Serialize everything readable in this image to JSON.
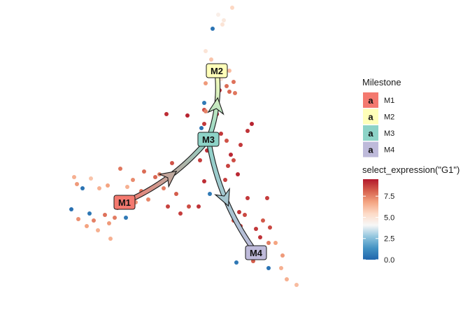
{
  "chart_data": {
    "type": "scatter",
    "title": "",
    "xlabel": "",
    "ylabel": "",
    "grid": false,
    "axes_visible": false,
    "milestones": [
      {
        "id": "M1",
        "color": "#F4796F",
        "x": -6.0,
        "y": -2.4
      },
      {
        "id": "M2",
        "color": "#FFFFB9",
        "x": 0.6,
        "y": 7.0
      },
      {
        "id": "M3",
        "color": "#8DD3C7",
        "x": 0.0,
        "y": 2.1
      },
      {
        "id": "M4",
        "color": "#BEBADA",
        "x": 3.4,
        "y": -6.0
      }
    ],
    "edges": [
      {
        "from": "M1",
        "to": "M3"
      },
      {
        "from": "M3",
        "to": "M2"
      },
      {
        "from": "M3",
        "to": "M4"
      }
    ],
    "cells": [
      {
        "x": -9.6,
        "y": -0.6,
        "expr": 6.5
      },
      {
        "x": -9.4,
        "y": -1.1,
        "expr": 7.0
      },
      {
        "x": -9.0,
        "y": -1.4,
        "expr": 0.4
      },
      {
        "x": -8.4,
        "y": -0.7,
        "expr": 6.0
      },
      {
        "x": -7.8,
        "y": -1.4,
        "expr": 6.5
      },
      {
        "x": -7.2,
        "y": -1.2,
        "expr": 6.8
      },
      {
        "x": -9.8,
        "y": -2.9,
        "expr": 0.3
      },
      {
        "x": -9.3,
        "y": -3.6,
        "expr": 7.2
      },
      {
        "x": -8.5,
        "y": -3.2,
        "expr": 0.5
      },
      {
        "x": -8.2,
        "y": -3.7,
        "expr": 7.5
      },
      {
        "x": -8.7,
        "y": -4.1,
        "expr": 6.8
      },
      {
        "x": -7.9,
        "y": -4.4,
        "expr": 6.5
      },
      {
        "x": -7.4,
        "y": -3.3,
        "expr": 7.8
      },
      {
        "x": -7.1,
        "y": -3.9,
        "expr": 7.0
      },
      {
        "x": -6.7,
        "y": -3.5,
        "expr": 7.6
      },
      {
        "x": -5.9,
        "y": -3.5,
        "expr": 0.6
      },
      {
        "x": -5.6,
        "y": -2.1,
        "expr": 7.5
      },
      {
        "x": -5.2,
        "y": -2.4,
        "expr": 7.1
      },
      {
        "x": -7.0,
        "y": -5.0,
        "expr": 6.5
      },
      {
        "x": -6.5,
        "y": -2.8,
        "expr": 8.5
      },
      {
        "x": -6.3,
        "y": 0.0,
        "expr": 7.7
      },
      {
        "x": -5.8,
        "y": -1.3,
        "expr": 6.5
      },
      {
        "x": -5.4,
        "y": -0.8,
        "expr": 7.3
      },
      {
        "x": -4.8,
        "y": -1.6,
        "expr": 7.8
      },
      {
        "x": -4.6,
        "y": -0.2,
        "expr": 7.9
      },
      {
        "x": -4.3,
        "y": -2.2,
        "expr": 7.4
      },
      {
        "x": -3.8,
        "y": -0.6,
        "expr": 8.0
      },
      {
        "x": -3.5,
        "y": -0.4,
        "expr": 7.5
      },
      {
        "x": -3.2,
        "y": -1.4,
        "expr": 7.6
      },
      {
        "x": -2.6,
        "y": 0.4,
        "expr": 8.4
      },
      {
        "x": -2.9,
        "y": -2.7,
        "expr": 8.7
      },
      {
        "x": -2.3,
        "y": -1.8,
        "expr": 8.2
      },
      {
        "x": -2.0,
        "y": -3.2,
        "expr": 8.8
      },
      {
        "x": -1.4,
        "y": -2.7,
        "expr": 8.5
      },
      {
        "x": -0.7,
        "y": -2.7,
        "expr": 9.0
      },
      {
        "x": -3.0,
        "y": 3.9,
        "expr": 9.1
      },
      {
        "x": -1.5,
        "y": 3.8,
        "expr": 9.3
      },
      {
        "x": -0.3,
        "y": 3.2,
        "expr": 8.9
      },
      {
        "x": 0.6,
        "y": 3.9,
        "expr": 9.4
      },
      {
        "x": 0.8,
        "y": 5.6,
        "expr": 9.0
      },
      {
        "x": -0.3,
        "y": 4.2,
        "expr": 8.6
      },
      {
        "x": 0.9,
        "y": 2.5,
        "expr": 8.9
      },
      {
        "x": -0.1,
        "y": 1.3,
        "expr": 9.1
      },
      {
        "x": 0.1,
        "y": -1.8,
        "expr": 0.6
      },
      {
        "x": 1.4,
        "y": 0.2,
        "expr": 8.7
      },
      {
        "x": 1.8,
        "y": 0.6,
        "expr": 8.5
      },
      {
        "x": 1.6,
        "y": 1.0,
        "expr": 9.2
      },
      {
        "x": 1.3,
        "y": 2.0,
        "expr": 8.4
      },
      {
        "x": 1.2,
        "y": -0.8,
        "expr": 8.8
      },
      {
        "x": -0.3,
        "y": -0.9,
        "expr": 9.1
      },
      {
        "x": -0.6,
        "y": 0.6,
        "expr": 8.8
      },
      {
        "x": 2.1,
        "y": -0.4,
        "expr": 9.2
      },
      {
        "x": 2.8,
        "y": -2.1,
        "expr": 8.9
      },
      {
        "x": 2.6,
        "y": -3.3,
        "expr": 8.6
      },
      {
        "x": 2.2,
        "y": -3.1,
        "expr": 9.0
      },
      {
        "x": 2.8,
        "y": 2.7,
        "expr": 9.0
      },
      {
        "x": 2.3,
        "y": 1.7,
        "expr": 8.9
      },
      {
        "x": 3.1,
        "y": 3.2,
        "expr": 9.3
      },
      {
        "x": 4.2,
        "y": -2.1,
        "expr": 8.8
      },
      {
        "x": 4.4,
        "y": -4.2,
        "expr": 8.6
      },
      {
        "x": 3.4,
        "y": -4.3,
        "expr": 8.9
      },
      {
        "x": 3.7,
        "y": -4.9,
        "expr": 9.0
      },
      {
        "x": 3.9,
        "y": -3.7,
        "expr": 8.3
      },
      {
        "x": 3.0,
        "y": -5.8,
        "expr": 7.8
      },
      {
        "x": 2.3,
        "y": -4.1,
        "expr": 8.7
      },
      {
        "x": 1.8,
        "y": -3.7,
        "expr": 8.4
      },
      {
        "x": 2.0,
        "y": -6.7,
        "expr": 0.5
      },
      {
        "x": 3.2,
        "y": -6.6,
        "expr": 8.2
      },
      {
        "x": 4.3,
        "y": -5.3,
        "expr": 7.6
      },
      {
        "x": 4.8,
        "y": -5.3,
        "expr": 6.8
      },
      {
        "x": 4.3,
        "y": -7.1,
        "expr": 0.4
      },
      {
        "x": 5.2,
        "y": -7.1,
        "expr": 6.5
      },
      {
        "x": 5.6,
        "y": -7.9,
        "expr": 6.5
      },
      {
        "x": 6.3,
        "y": -8.3,
        "expr": 6.2
      },
      {
        "x": 5.3,
        "y": -6.2,
        "expr": 7.0
      },
      {
        "x": 0.7,
        "y": 11.0,
        "expr": 4.5
      },
      {
        "x": 1.1,
        "y": 10.6,
        "expr": 4.8
      },
      {
        "x": 1.0,
        "y": 10.3,
        "expr": 5.0
      },
      {
        "x": 1.7,
        "y": 11.5,
        "expr": 5.5
      },
      {
        "x": 0.3,
        "y": 10.0,
        "expr": 0.4
      },
      {
        "x": -0.2,
        "y": 8.4,
        "expr": 5.0
      },
      {
        "x": 0.2,
        "y": 7.8,
        "expr": 6.0
      },
      {
        "x": 0.1,
        "y": 7.1,
        "expr": 0.5
      },
      {
        "x": 0.3,
        "y": 6.9,
        "expr": 0.4
      },
      {
        "x": -0.2,
        "y": 6.1,
        "expr": 7.0
      },
      {
        "x": 0.9,
        "y": 6.4,
        "expr": 5.0
      },
      {
        "x": 1.5,
        "y": 7.0,
        "expr": 6.2
      },
      {
        "x": 1.8,
        "y": 6.2,
        "expr": 7.8
      },
      {
        "x": 1.3,
        "y": 5.9,
        "expr": 7.9
      },
      {
        "x": 1.9,
        "y": 5.4,
        "expr": 7.7
      },
      {
        "x": 1.5,
        "y": 5.5,
        "expr": 8.0
      },
      {
        "x": -0.3,
        "y": 4.7,
        "expr": 0.6
      },
      {
        "x": -0.2,
        "y": 4.1,
        "expr": 7.5
      },
      {
        "x": -0.5,
        "y": 2.9,
        "expr": 0.3
      },
      {
        "x": 0.6,
        "y": 5.1,
        "expr": 7.4
      }
    ]
  },
  "legend": {
    "milestone_title": "Milestone",
    "key_letter": "a",
    "items": [
      {
        "label": "M1",
        "color": "#F4796F"
      },
      {
        "label": "M2",
        "color": "#FFFFB9"
      },
      {
        "label": "M3",
        "color": "#8DD3C7"
      },
      {
        "label": "M4",
        "color": "#BEBADA"
      }
    ],
    "colorbar_title": "select_expression(\"G1\")",
    "colorbar_ticks": [
      "0.0",
      "2.5",
      "5.0",
      "7.5"
    ],
    "colorbar_range": [
      0,
      9.5
    ],
    "colorbar_stops": [
      "#2166AC",
      "#4393C3",
      "#92C5DE",
      "#F7F7F7",
      "#FDDBC7",
      "#F4A582",
      "#D6604D",
      "#B2182B"
    ]
  }
}
